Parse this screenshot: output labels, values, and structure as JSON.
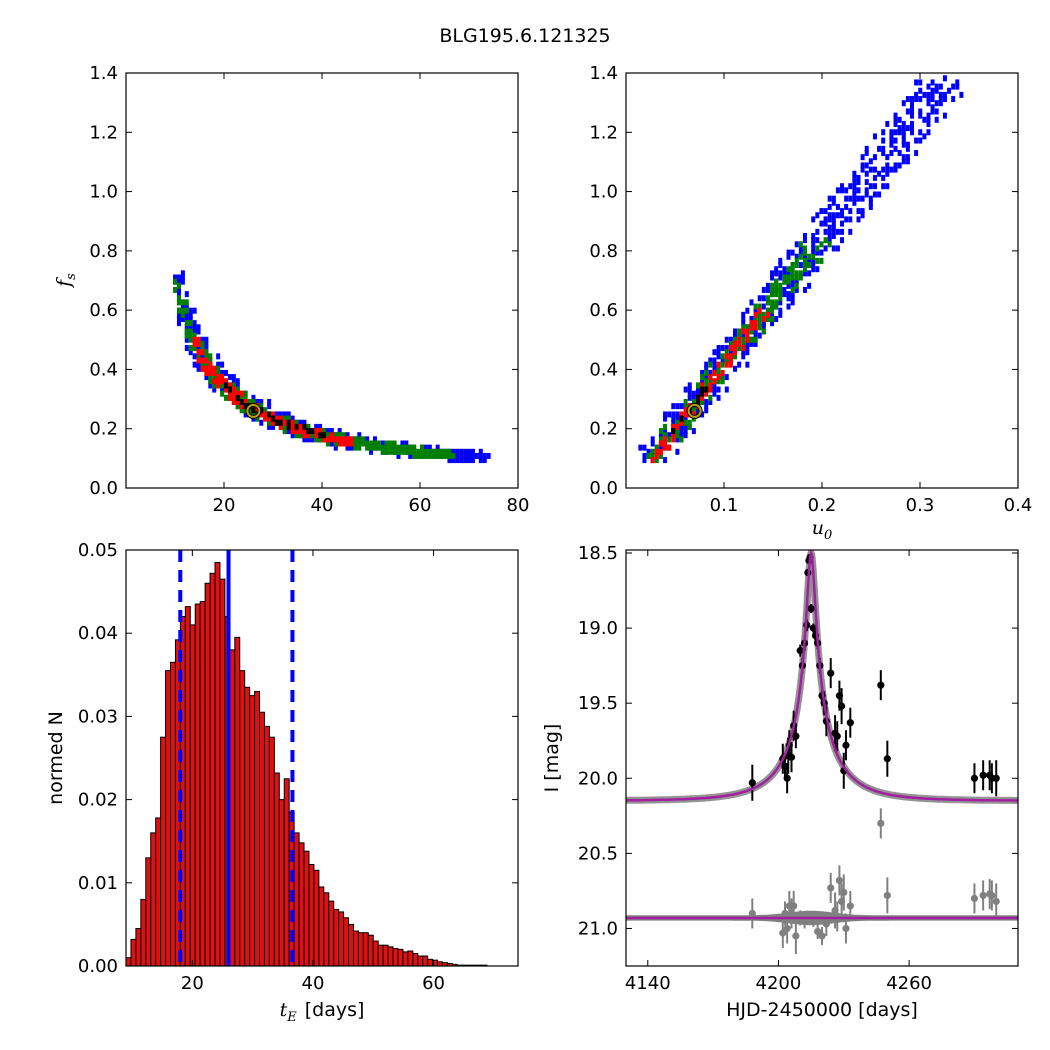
{
  "figure_title": "BLG195.6.121325",
  "colors": {
    "level_outer": "#0000ff",
    "level_mid": "#008000",
    "level_inner": "#ff0000",
    "level_core": "#000000",
    "best_marker": "#b8a200",
    "histogram_fill": "#e01010",
    "quantile_line": "#0000ff",
    "model_curve": "#a020a0",
    "data_points": "#000000",
    "residual_points": "#808080"
  },
  "chart_data": [
    {
      "type": "heatmap",
      "panel": "top-left",
      "xlabel": "",
      "ylabel": "f_s",
      "ylabel_main": "f",
      "ylabel_sub": "s",
      "xlim": [
        0,
        80
      ],
      "ylim": [
        0,
        1.4
      ],
      "xticks": [
        20,
        40,
        60,
        80
      ],
      "yticks": [
        0.0,
        0.2,
        0.4,
        0.6,
        0.8,
        1.0,
        1.2,
        1.4
      ],
      "ridge": {
        "param": "t_E",
        "relation": "f_s ≈ 6.6 / t_E",
        "x_range": [
          10,
          73
        ]
      },
      "best_fit": {
        "x": 26,
        "y": 0.26
      },
      "legend": "none",
      "grid": false
    },
    {
      "type": "heatmap",
      "panel": "top-right",
      "xlabel": "u_0",
      "xlabel_main": "u",
      "xlabel_sub": "0",
      "ylabel": "",
      "xlim": [
        0,
        0.4
      ],
      "ylim": [
        0,
        1.4
      ],
      "xticks": [
        0.1,
        0.2,
        0.3,
        0.4
      ],
      "yticks": [
        0.0,
        0.2,
        0.4,
        0.6,
        0.8,
        1.0,
        1.2,
        1.4
      ],
      "ridge": {
        "relation": "f_s ≈ 4.1·u_0 − 0.02",
        "x_range": [
          0.025,
          0.33
        ]
      },
      "best_fit": {
        "x": 0.07,
        "y": 0.26
      },
      "legend": "none",
      "grid": false
    },
    {
      "type": "bar",
      "panel": "bottom-left",
      "xlabel": "t_E [days]",
      "xlabel_main": "t",
      "xlabel_sub": "E",
      "xlabel_unit": "[days]",
      "ylabel": "normed N",
      "xlim": [
        9,
        74
      ],
      "ylim": [
        0,
        0.05
      ],
      "xticks": [
        20,
        40,
        60
      ],
      "yticks": [
        0.0,
        0.01,
        0.02,
        0.03,
        0.04,
        0.05
      ],
      "bin_start": 9.0,
      "bin_width": 0.82,
      "values": [
        0.001,
        0.0032,
        0.0045,
        0.008,
        0.013,
        0.016,
        0.0178,
        0.0275,
        0.0355,
        0.0365,
        0.0392,
        0.042,
        0.0432,
        0.041,
        0.0435,
        0.0438,
        0.046,
        0.0472,
        0.0485,
        0.0465,
        0.042,
        0.038,
        0.0395,
        0.0355,
        0.0335,
        0.0325,
        0.033,
        0.0305,
        0.0288,
        0.0275,
        0.0232,
        0.02,
        0.0225,
        0.0185,
        0.016,
        0.0148,
        0.0138,
        0.0122,
        0.0115,
        0.0095,
        0.0088,
        0.0078,
        0.0068,
        0.0065,
        0.0058,
        0.005,
        0.0042,
        0.004,
        0.004,
        0.0037,
        0.003,
        0.0025,
        0.0025,
        0.0023,
        0.0021,
        0.002,
        0.0017,
        0.0018,
        0.0015,
        0.0012,
        0.0012,
        0.0008,
        0.0007,
        0.0005,
        0.0004,
        0.0003,
        0.0002,
        0.0001,
        0.0001,
        0.0001,
        0.0001,
        0.0001,
        0.0001
      ],
      "median": 26.0,
      "quantiles": [
        18.0,
        36.6
      ],
      "legend": "none",
      "grid": false
    },
    {
      "type": "scatter",
      "panel": "bottom-right",
      "xlabel": "HJD-2450000 [days]",
      "ylabel": "I [mag]",
      "xlim": [
        4130,
        4310
      ],
      "ylim": [
        21.25,
        18.48
      ],
      "y_inverted": true,
      "xticks": [
        4140,
        4200,
        4260
      ],
      "yticks": [
        18.5,
        19.0,
        19.5,
        20.0,
        20.5,
        21.0
      ],
      "model": {
        "t0": 4215.0,
        "baseline": 20.15,
        "peak": 18.5,
        "residual_offset": 20.93
      },
      "series": [
        {
          "role": "data",
          "points": [
            {
              "x": 4188,
              "y": 20.03,
              "err": 0.12
            },
            {
              "x": 4202,
              "y": 19.87,
              "err": 0.1
            },
            {
              "x": 4203,
              "y": 19.92,
              "err": 0.08
            },
            {
              "x": 4204,
              "y": 20.0,
              "err": 0.1
            },
            {
              "x": 4204.5,
              "y": 19.85,
              "err": 0.12
            },
            {
              "x": 4205,
              "y": 19.78,
              "err": 0.1
            },
            {
              "x": 4206,
              "y": 19.86,
              "err": 0.1
            },
            {
              "x": 4207,
              "y": 19.65,
              "err": 0.1
            },
            {
              "x": 4208,
              "y": 19.72,
              "err": 0.08
            },
            {
              "x": 4210,
              "y": 19.15,
              "err": 0.04
            },
            {
              "x": 4211,
              "y": 19.25,
              "err": 0.05
            },
            {
              "x": 4212,
              "y": 19.1,
              "err": 0.05
            },
            {
              "x": 4213,
              "y": 18.98,
              "err": 0.04
            },
            {
              "x": 4213.5,
              "y": 18.63,
              "err": 0.02
            },
            {
              "x": 4214,
              "y": 18.55,
              "err": 0.02
            },
            {
              "x": 4214.5,
              "y": 18.53,
              "err": 0.02
            },
            {
              "x": 4215,
              "y": 18.87,
              "err": 0.03
            },
            {
              "x": 4216,
              "y": 19.0,
              "err": 0.03
            },
            {
              "x": 4217,
              "y": 19.05,
              "err": 0.04
            },
            {
              "x": 4218,
              "y": 19.1,
              "err": 0.04
            },
            {
              "x": 4219,
              "y": 19.25,
              "err": 0.05
            },
            {
              "x": 4220,
              "y": 19.45,
              "err": 0.06
            },
            {
              "x": 4221,
              "y": 19.5,
              "err": 0.08
            },
            {
              "x": 4222,
              "y": 19.62,
              "err": 0.1
            },
            {
              "x": 4224,
              "y": 19.3,
              "err": 0.1
            },
            {
              "x": 4226,
              "y": 19.7,
              "err": 0.12
            },
            {
              "x": 4227,
              "y": 19.72,
              "err": 0.1
            },
            {
              "x": 4228,
              "y": 19.45,
              "err": 0.1
            },
            {
              "x": 4229,
              "y": 19.52,
              "err": 0.12
            },
            {
              "x": 4230,
              "y": 19.95,
              "err": 0.12
            },
            {
              "x": 4231,
              "y": 19.78,
              "err": 0.1
            },
            {
              "x": 4233,
              "y": 19.63,
              "err": 0.1
            },
            {
              "x": 4247,
              "y": 19.38,
              "err": 0.1
            },
            {
              "x": 4250,
              "y": 19.87,
              "err": 0.12
            },
            {
              "x": 4290,
              "y": 20.0,
              "err": 0.1
            },
            {
              "x": 4294,
              "y": 19.98,
              "err": 0.1
            },
            {
              "x": 4297,
              "y": 19.98,
              "err": 0.1
            },
            {
              "x": 4298,
              "y": 20.0,
              "err": 0.1
            },
            {
              "x": 4300,
              "y": 20.0,
              "err": 0.12
            }
          ]
        },
        {
          "role": "residuals",
          "points": [
            {
              "x": 4188,
              "y": 20.9,
              "err": 0.1
            },
            {
              "x": 4202,
              "y": 21.03,
              "err": 0.1
            },
            {
              "x": 4203,
              "y": 20.9,
              "err": 0.08
            },
            {
              "x": 4204,
              "y": 21.0,
              "err": 0.1
            },
            {
              "x": 4205,
              "y": 20.85,
              "err": 0.1
            },
            {
              "x": 4206,
              "y": 20.9,
              "err": 0.1
            },
            {
              "x": 4207,
              "y": 20.85,
              "err": 0.1
            },
            {
              "x": 4208,
              "y": 21.05,
              "err": 0.12
            },
            {
              "x": 4210,
              "y": 20.93,
              "err": 0.05
            },
            {
              "x": 4212,
              "y": 20.95,
              "err": 0.05
            },
            {
              "x": 4214,
              "y": 20.92,
              "err": 0.03
            },
            {
              "x": 4216,
              "y": 20.95,
              "err": 0.04
            },
            {
              "x": 4218,
              "y": 21.02,
              "err": 0.05
            },
            {
              "x": 4220,
              "y": 21.05,
              "err": 0.06
            },
            {
              "x": 4222,
              "y": 20.97,
              "err": 0.08
            },
            {
              "x": 4224,
              "y": 20.73,
              "err": 0.1
            },
            {
              "x": 4226,
              "y": 20.88,
              "err": 0.12
            },
            {
              "x": 4227,
              "y": 20.92,
              "err": 0.1
            },
            {
              "x": 4228,
              "y": 20.68,
              "err": 0.1
            },
            {
              "x": 4229,
              "y": 20.82,
              "err": 0.12
            },
            {
              "x": 4230,
              "y": 20.76,
              "err": 0.12
            },
            {
              "x": 4231,
              "y": 21.0,
              "err": 0.1
            },
            {
              "x": 4233,
              "y": 20.85,
              "err": 0.1
            },
            {
              "x": 4247,
              "y": 20.3,
              "err": 0.1
            },
            {
              "x": 4250,
              "y": 20.78,
              "err": 0.12
            },
            {
              "x": 4290,
              "y": 20.8,
              "err": 0.1
            },
            {
              "x": 4294,
              "y": 20.78,
              "err": 0.1
            },
            {
              "x": 4297,
              "y": 20.77,
              "err": 0.1
            },
            {
              "x": 4298,
              "y": 20.78,
              "err": 0.1
            },
            {
              "x": 4300,
              "y": 20.82,
              "err": 0.12
            }
          ]
        }
      ],
      "legend": "none",
      "grid": false
    }
  ]
}
